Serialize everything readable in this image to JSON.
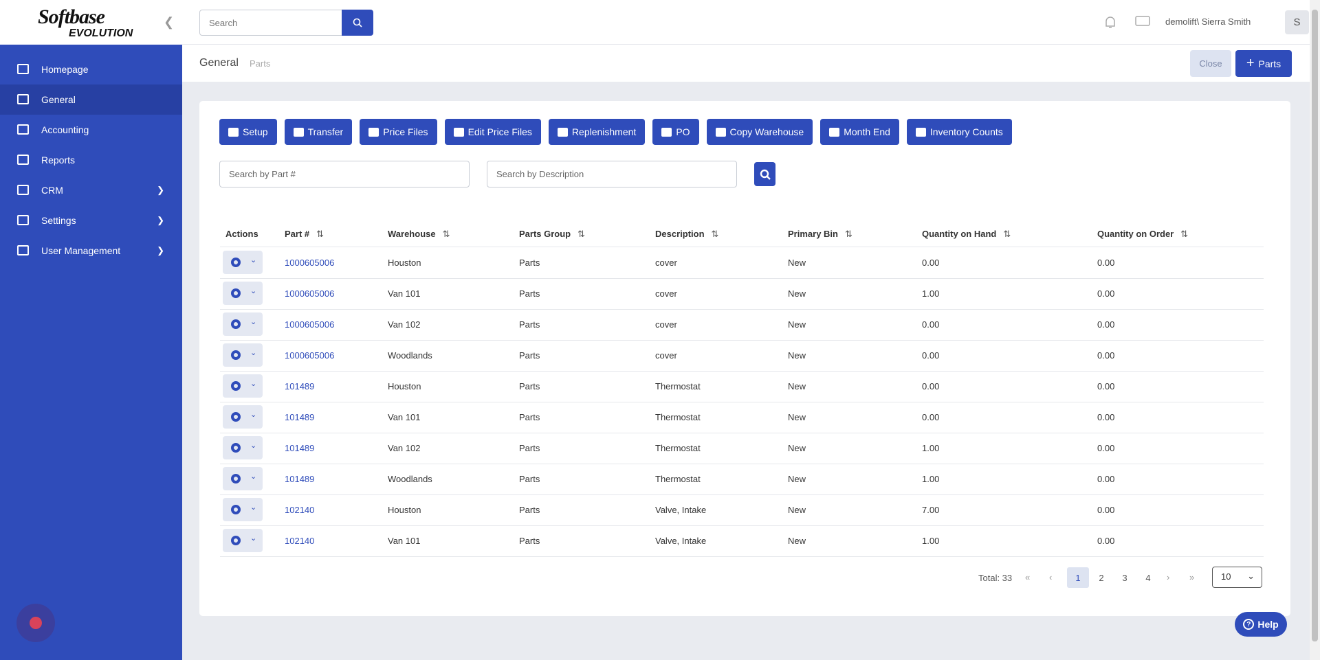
{
  "logo": {
    "brand": "Softbase",
    "sub": "EVOLUTION"
  },
  "sidebar": {
    "items": [
      "Homepage",
      "General",
      "Accounting",
      "Reports",
      "CRM",
      "Settings",
      "User Management"
    ]
  },
  "header": {
    "search_placeholder": "Search",
    "user": "demolift\\ Sierra Smith",
    "avatar": "S"
  },
  "breadcrumb": {
    "section": "General",
    "page": "Parts"
  },
  "actions": {
    "close": "Close",
    "add": "Parts"
  },
  "toolbar": [
    "Setup",
    "Transfer",
    "Price Files",
    "Edit Price Files",
    "Replenishment",
    "PO",
    "Copy Warehouse",
    "Month End",
    "Inventory Counts"
  ],
  "filters": {
    "part": "Search by Part #",
    "description": "Search by Description"
  },
  "table": {
    "headers": [
      "Actions",
      "Part #",
      "Warehouse",
      "Parts Group",
      "Description",
      "Primary Bin",
      "Quantity on Hand",
      "Quantity on Order"
    ],
    "rows": [
      [
        "1000605006",
        "Houston",
        "Parts",
        "cover",
        "New",
        "0.00",
        "0.00"
      ],
      [
        "1000605006",
        "Van 101",
        "Parts",
        "cover",
        "New",
        "1.00",
        "0.00"
      ],
      [
        "1000605006",
        "Van 102",
        "Parts",
        "cover",
        "New",
        "0.00",
        "0.00"
      ],
      [
        "1000605006",
        "Woodlands",
        "Parts",
        "cover",
        "New",
        "0.00",
        "0.00"
      ],
      [
        "101489",
        "Houston",
        "Parts",
        "Thermostat",
        "New",
        "0.00",
        "0.00"
      ],
      [
        "101489",
        "Van 101",
        "Parts",
        "Thermostat",
        "New",
        "0.00",
        "0.00"
      ],
      [
        "101489",
        "Van 102",
        "Parts",
        "Thermostat",
        "New",
        "1.00",
        "0.00"
      ],
      [
        "101489",
        "Woodlands",
        "Parts",
        "Thermostat",
        "New",
        "1.00",
        "0.00"
      ],
      [
        "102140",
        "Houston",
        "Parts",
        "Valve, Intake",
        "New",
        "7.00",
        "0.00"
      ],
      [
        "102140",
        "Van 101",
        "Parts",
        "Valve, Intake",
        "New",
        "1.00",
        "0.00"
      ]
    ]
  },
  "pagination": {
    "total": "Total: 33",
    "pages": [
      "1",
      "2",
      "3",
      "4"
    ],
    "page_size": "10"
  },
  "help": "Help"
}
